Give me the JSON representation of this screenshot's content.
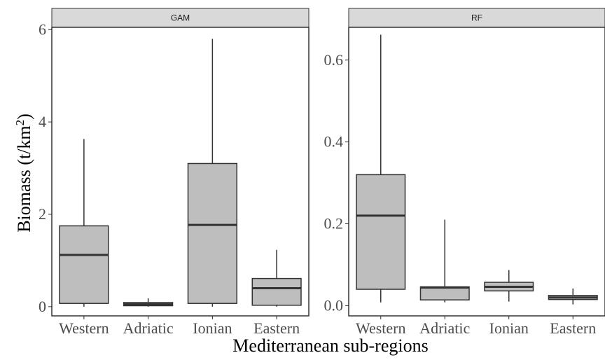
{
  "chart_data": {
    "type": "boxplot",
    "xlabel": "Mediterranean sub-regions",
    "ylabel": "Biomass (t/km²)",
    "ylabel_parts": {
      "main": "Biomass (t/km",
      "sup": "2",
      "end": ")"
    },
    "categories": [
      "Western",
      "Adriatic",
      "Ionian",
      "Eastern"
    ],
    "grid": false,
    "box_fill": "#bebebe",
    "line_color": "#333333",
    "strip_fill": "#d9d9d9",
    "panels": [
      {
        "name": "GAM",
        "ylim": [
          -0.2,
          6.05
        ],
        "yticks": [
          0,
          2,
          4,
          6
        ],
        "ytick_labels": [
          "0",
          "2",
          "4",
          "6"
        ],
        "boxes": [
          {
            "category": "Western",
            "min": 0.0,
            "q1": 0.07,
            "median": 1.12,
            "q3": 1.75,
            "max": 3.63
          },
          {
            "category": "Adriatic",
            "min": 0.0,
            "q1": 0.02,
            "median": 0.05,
            "q3": 0.09,
            "max": 0.18
          },
          {
            "category": "Ionian",
            "min": 0.0,
            "q1": 0.07,
            "median": 1.77,
            "q3": 3.1,
            "max": 5.8
          },
          {
            "category": "Eastern",
            "min": 0.0,
            "q1": 0.03,
            "median": 0.4,
            "q3": 0.61,
            "max": 1.23
          }
        ]
      },
      {
        "name": "RF",
        "ylim": [
          -0.025,
          0.68
        ],
        "yticks": [
          0.0,
          0.2,
          0.4,
          0.6
        ],
        "ytick_labels": [
          "0.0",
          "0.2",
          "0.4",
          "0.6"
        ],
        "boxes": [
          {
            "category": "Western",
            "min": 0.008,
            "q1": 0.04,
            "median": 0.22,
            "q3": 0.32,
            "max": 0.662
          },
          {
            "category": "Adriatic",
            "min": 0.008,
            "q1": 0.014,
            "median": 0.044,
            "q3": 0.046,
            "max": 0.21
          },
          {
            "category": "Ionian",
            "min": 0.01,
            "q1": 0.036,
            "median": 0.046,
            "q3": 0.057,
            "max": 0.087
          },
          {
            "category": "Eastern",
            "min": 0.003,
            "q1": 0.015,
            "median": 0.02,
            "q3": 0.025,
            "max": 0.042
          }
        ]
      }
    ]
  }
}
